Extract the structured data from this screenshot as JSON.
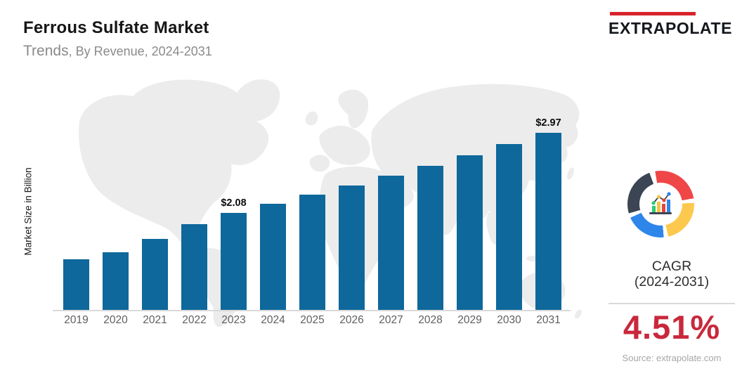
{
  "header": {
    "title": "Ferrous Sulfate Market",
    "subtitle_primary": "Trends",
    "subtitle_secondary": ", By Revenue, 2024-2031",
    "logo_text": "EXTRAPOLATE"
  },
  "chart_data": {
    "type": "bar",
    "title": "Ferrous Sulfate Market Trends, By Revenue, 2024-2031",
    "ylabel": "Market Size in Billion",
    "xlabel": "",
    "categories": [
      "2019",
      "2020",
      "2021",
      "2022",
      "2023",
      "2024",
      "2025",
      "2026",
      "2027",
      "2028",
      "2029",
      "2030",
      "2031"
    ],
    "values": [
      1.56,
      1.64,
      1.79,
      1.95,
      2.08,
      2.18,
      2.28,
      2.38,
      2.49,
      2.6,
      2.72,
      2.84,
      2.97
    ],
    "point_labels": {
      "2023": "$2.08",
      "2031": "$2.97"
    },
    "ylim": [
      1.0,
      3.2
    ],
    "grid": false,
    "legend": false,
    "bar_color": "#0e689b"
  },
  "sidebar": {
    "cagr_title": "CAGR",
    "cagr_range": "(2024-2031)",
    "cagr_value": "4.51%",
    "source": "Source: extrapolate.com"
  },
  "colors": {
    "accent_red": "#d8232a",
    "cagr_value_red": "#c9283c",
    "map_fill": "#ececec",
    "axis_line": "#d9d9d9",
    "donut_dark": "#3b4553",
    "donut_red": "#ef4648",
    "donut_yellow": "#fcc94e",
    "donut_blue": "#2e86ea",
    "icon_green": "#2ecc71",
    "icon_yellow": "#f6c445",
    "icon_red": "#e8453c",
    "icon_blue": "#2e86ea"
  }
}
